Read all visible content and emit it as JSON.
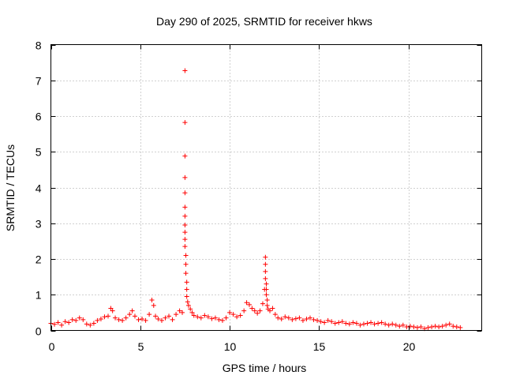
{
  "chart_data": {
    "type": "scatter",
    "title": "Day 290 of 2025, SRMTID for receiver hkws",
    "xlabel": "GPS time / hours",
    "ylabel": "SRMTID / TECUs",
    "xlim": [
      0,
      24.1
    ],
    "ylim": [
      0,
      8
    ],
    "xticks": [
      0,
      5,
      10,
      15,
      20
    ],
    "yticks": [
      0,
      1,
      2,
      3,
      4,
      5,
      6,
      7,
      8
    ],
    "grid": true,
    "marker": "+",
    "color": "#ff0000",
    "series": [
      {
        "name": "SRMTID",
        "x": [
          0.0,
          0.2,
          0.4,
          0.6,
          0.8,
          1.0,
          1.2,
          1.4,
          1.6,
          1.8,
          2.0,
          2.2,
          2.4,
          2.6,
          2.8,
          3.0,
          3.2,
          3.35,
          3.45,
          3.6,
          3.8,
          4.0,
          4.2,
          4.4,
          4.55,
          4.7,
          4.9,
          5.1,
          5.3,
          5.5,
          5.65,
          5.75,
          5.85,
          6.0,
          6.2,
          6.4,
          6.6,
          6.8,
          7.0,
          7.2,
          7.35,
          7.5,
          7.5,
          7.5,
          7.5,
          7.5,
          7.5,
          7.5,
          7.5,
          7.5,
          7.5,
          7.5,
          7.55,
          7.55,
          7.55,
          7.6,
          7.6,
          7.6,
          7.65,
          7.7,
          7.8,
          7.9,
          8.0,
          8.2,
          8.4,
          8.6,
          8.8,
          9.0,
          9.2,
          9.4,
          9.6,
          9.8,
          10.0,
          10.2,
          10.4,
          10.6,
          10.8,
          10.95,
          11.1,
          11.25,
          11.4,
          11.55,
          11.7,
          11.85,
          11.95,
          12.0,
          12.0,
          12.0,
          12.0,
          12.05,
          12.05,
          12.05,
          12.1,
          12.1,
          12.15,
          12.25,
          12.4,
          12.55,
          12.7,
          12.9,
          13.1,
          13.3,
          13.5,
          13.7,
          13.9,
          14.1,
          14.3,
          14.5,
          14.7,
          14.9,
          15.1,
          15.3,
          15.5,
          15.7,
          15.9,
          16.1,
          16.3,
          16.5,
          16.7,
          16.9,
          17.1,
          17.3,
          17.5,
          17.7,
          17.9,
          18.1,
          18.3,
          18.5,
          18.7,
          18.9,
          19.1,
          19.3,
          19.5,
          19.7,
          19.9,
          20.1,
          20.3,
          20.5,
          20.7,
          20.9,
          21.1,
          21.3,
          21.5,
          21.7,
          21.9,
          22.1,
          22.3,
          22.5,
          22.7,
          22.9
        ],
        "y": [
          0.2,
          0.17,
          0.22,
          0.15,
          0.25,
          0.22,
          0.3,
          0.28,
          0.35,
          0.3,
          0.18,
          0.15,
          0.2,
          0.28,
          0.32,
          0.38,
          0.4,
          0.62,
          0.55,
          0.35,
          0.3,
          0.28,
          0.35,
          0.45,
          0.55,
          0.4,
          0.3,
          0.32,
          0.28,
          0.45,
          0.85,
          0.7,
          0.4,
          0.32,
          0.28,
          0.35,
          0.4,
          0.3,
          0.45,
          0.55,
          0.5,
          7.27,
          5.82,
          4.88,
          4.28,
          3.85,
          3.45,
          3.2,
          2.95,
          2.75,
          2.55,
          2.35,
          2.1,
          1.85,
          1.6,
          1.35,
          1.15,
          0.95,
          0.8,
          0.7,
          0.6,
          0.5,
          0.42,
          0.38,
          0.35,
          0.42,
          0.38,
          0.33,
          0.35,
          0.3,
          0.28,
          0.35,
          0.5,
          0.45,
          0.38,
          0.42,
          0.55,
          0.78,
          0.72,
          0.62,
          0.55,
          0.48,
          0.55,
          0.75,
          1.15,
          2.05,
          1.85,
          1.65,
          1.45,
          1.3,
          1.15,
          1.0,
          0.85,
          0.7,
          0.6,
          0.55,
          0.62,
          0.45,
          0.35,
          0.32,
          0.38,
          0.35,
          0.3,
          0.33,
          0.35,
          0.28,
          0.32,
          0.35,
          0.3,
          0.28,
          0.25,
          0.22,
          0.28,
          0.25,
          0.2,
          0.22,
          0.25,
          0.2,
          0.18,
          0.22,
          0.2,
          0.15,
          0.18,
          0.2,
          0.22,
          0.18,
          0.2,
          0.22,
          0.18,
          0.15,
          0.18,
          0.15,
          0.12,
          0.15,
          0.1,
          0.12,
          0.1,
          0.08,
          0.1,
          0.05,
          0.08,
          0.1,
          0.12,
          0.1,
          0.12,
          0.15,
          0.18,
          0.12,
          0.1,
          0.08
        ]
      }
    ]
  }
}
